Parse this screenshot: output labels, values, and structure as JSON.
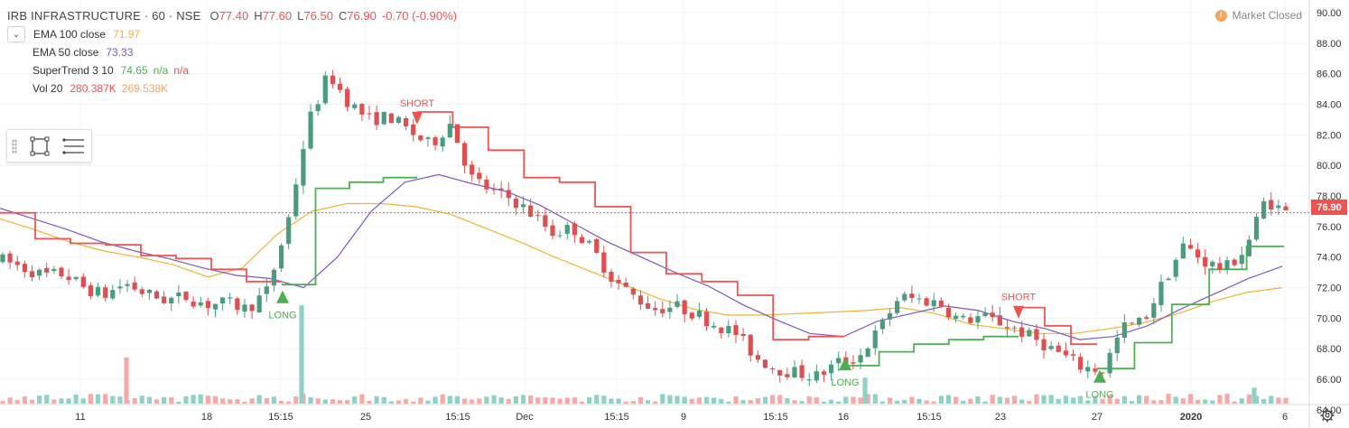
{
  "header": {
    "symbol": "IRB INFRASTRUCTURE · 60 · NSE",
    "open_label": "O",
    "open": "77.40",
    "high_label": "H",
    "high": "77.60",
    "low_label": "L",
    "low": "76.50",
    "close_label": "C",
    "close": "76.90",
    "change": "-0.70 (-0.90%)"
  },
  "indicators": [
    {
      "name": "EMA 100 close",
      "value": "71.97",
      "color": "#f2b233"
    },
    {
      "name": "EMA 50 close",
      "value": "73.33",
      "color": "#7e57c2"
    },
    {
      "name": "SuperTrend 3 10",
      "value": "74.65",
      "extra1": "n/a",
      "extra2": "n/a",
      "color": "#4caf50",
      "extra_color": "#ef5350"
    },
    {
      "name": "Vol 20",
      "value": "280.387K",
      "value2": "269.538K",
      "color": "#ef5350",
      "color2": "#f7a35c"
    }
  ],
  "status": {
    "text": "Market Closed",
    "icon": "alert-dot-icon"
  },
  "price_tag": "76.90",
  "colors": {
    "up": "#4a9c7e",
    "down": "#e04f50",
    "ema100": "#f2b233",
    "ema50": "#7e57c2",
    "st_up": "#4caf50",
    "st_down": "#ef5350",
    "vol_up": "#8fd1c5",
    "vol_down": "#f7a9a8"
  },
  "chart_data": {
    "type": "candlestick",
    "symbol": "IRB INFRASTRUCTURE",
    "interval": "60",
    "ylim": [
      64,
      90
    ],
    "y_ticks": [
      "90.00",
      "88.00",
      "86.00",
      "84.00",
      "82.00",
      "80.00",
      "78.00",
      "76.00",
      "74.00",
      "72.00",
      "70.00",
      "68.00",
      "66.00",
      "64.00"
    ],
    "x_ticks": [
      "11",
      "18",
      "15:15",
      "25",
      "15:15",
      "Dec",
      "15:15",
      "9",
      "15:15",
      "16",
      "15:15",
      "23",
      "27",
      "2020",
      "6"
    ],
    "last_price": 76.9,
    "ohlc_anchors": [
      73.8,
      73.3,
      72.8,
      72.9,
      72.0,
      71.5,
      72.3,
      71.6,
      71.2,
      71.4,
      70.9,
      71.0,
      70.6,
      71.8,
      76.3,
      82.8,
      86.0,
      84.1,
      83.0,
      83.2,
      82.2,
      81.3,
      82.8,
      79.2,
      78.3,
      77.8,
      76.8,
      75.6,
      75.9,
      74.4,
      72.5,
      71.4,
      70.6,
      70.8,
      70.3,
      69.6,
      69.0,
      67.4,
      66.7,
      66.4,
      66.2,
      67.1,
      67.4,
      69.2,
      71.4,
      71.2,
      71.0,
      69.8,
      70.1,
      69.7,
      69.1,
      68.4,
      67.6,
      66.8,
      66.6,
      69.4,
      69.8,
      72.4,
      74.8,
      73.7,
      73.2,
      74.5,
      77.8,
      76.9
    ],
    "volume_spikes": [
      {
        "x": 140,
        "volume_fraction": 0.32,
        "direction": "down"
      },
      {
        "x": 334,
        "volume_fraction": 0.68,
        "direction": "up"
      },
      {
        "x": 958,
        "volume_fraction": 0.18,
        "direction": "up"
      },
      {
        "x": 1389,
        "volume_fraction": 0.11,
        "direction": "up"
      }
    ],
    "series": [
      {
        "name": "EMA 100 close",
        "kind": "line",
        "color": "#f2b233",
        "values": [
          76.5,
          75.8,
          75.0,
          74.4,
          74.0,
          73.5,
          72.7,
          73.3,
          75.5,
          77.0,
          77.5,
          77.5,
          77.3,
          76.8,
          75.9,
          75.0,
          74.0,
          73.1,
          72.2,
          71.3,
          70.6,
          70.2,
          70.2,
          70.3,
          70.4,
          70.5,
          70.7,
          70.3,
          69.6,
          69.3,
          69.0,
          69.0,
          69.3,
          69.7,
          70.3,
          71.1,
          71.7,
          72.0
        ]
      },
      {
        "name": "EMA 50 close",
        "kind": "line",
        "color": "#7e57c2",
        "values": [
          77.2,
          76.5,
          75.8,
          75.0,
          74.4,
          73.9,
          73.3,
          72.8,
          72.6,
          72.0,
          74.0,
          77.0,
          78.9,
          79.4,
          78.8,
          78.3,
          77.4,
          76.2,
          75.0,
          74.0,
          73.0,
          72.1,
          70.9,
          69.9,
          69.0,
          68.8,
          69.8,
          70.3,
          70.8,
          70.5,
          69.8,
          69.3,
          68.6,
          68.8,
          69.5,
          70.6,
          71.6,
          72.6,
          73.4
        ]
      },
      {
        "name": "SuperTrend 3 10 (down)",
        "kind": "step",
        "color": "#ef5350",
        "values": [
          76.9,
          75.2,
          74.9,
          74.8,
          74.1,
          73.9,
          73.2,
          72.4,
          83.5,
          82.5,
          81.0,
          79.2,
          78.9,
          77.3,
          74.3,
          72.9,
          72.4,
          71.5,
          68.6,
          68.8,
          70.7,
          69.5,
          68.3
        ]
      },
      {
        "name": "SuperTrend 3 10 (up)",
        "kind": "step",
        "color": "#4caf50",
        "values": [
          72.2,
          78.5,
          78.9,
          79.2,
          66.9,
          67.8,
          68.3,
          68.6,
          68.8,
          66.7,
          68.4,
          70.9,
          73.2,
          74.7
        ]
      }
    ],
    "signals": [
      {
        "label": "LONG",
        "price": 71.4,
        "direction": "up"
      },
      {
        "label": "SHORT",
        "price": 82.8,
        "direction": "down"
      },
      {
        "label": "LONG",
        "price": 67.0,
        "direction": "up"
      },
      {
        "label": "SHORT",
        "price": 70.1,
        "direction": "down"
      },
      {
        "label": "LONG",
        "price": 66.2,
        "direction": "up"
      }
    ]
  }
}
